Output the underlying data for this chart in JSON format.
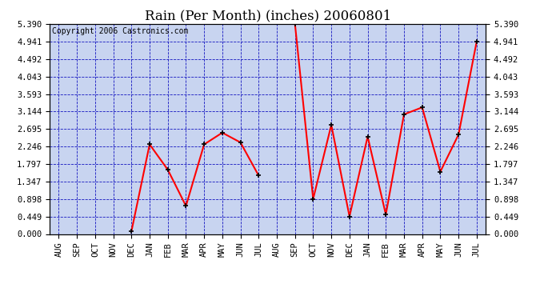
{
  "title": "Rain (Per Month) (inches) 20060801",
  "copyright_text": "Copyright 2006 Castronics.com",
  "categories": [
    "AUG",
    "SEP",
    "OCT",
    "NOV",
    "DEC",
    "JAN",
    "FEB",
    "MAR",
    "APR",
    "MAY",
    "JUN",
    "JUL",
    "AUG",
    "SEP",
    "OCT",
    "NOV",
    "DEC",
    "JAN",
    "FEB",
    "MAR",
    "APR",
    "MAY",
    "JUN",
    "JUL"
  ],
  "values": [
    null,
    null,
    null,
    null,
    0.07,
    2.3,
    1.65,
    0.72,
    2.3,
    2.6,
    2.35,
    1.5,
    null,
    5.39,
    0.9,
    2.8,
    0.45,
    2.5,
    0.5,
    3.07,
    3.25,
    1.6,
    2.55,
    4.94
  ],
  "yticks": [
    0.0,
    0.449,
    0.898,
    1.347,
    1.797,
    2.246,
    2.695,
    3.144,
    3.593,
    4.043,
    4.492,
    4.941,
    5.39
  ],
  "ymin": 0.0,
  "ymax": 5.39,
  "line_color": "#ff0000",
  "marker_color": "#000000",
  "bg_color": "#ffffff",
  "plot_bg_color": "#c8d4f0",
  "grid_color": "#0000bb",
  "title_fontsize": 12,
  "copyright_fontsize": 7,
  "tick_fontsize": 7.5
}
